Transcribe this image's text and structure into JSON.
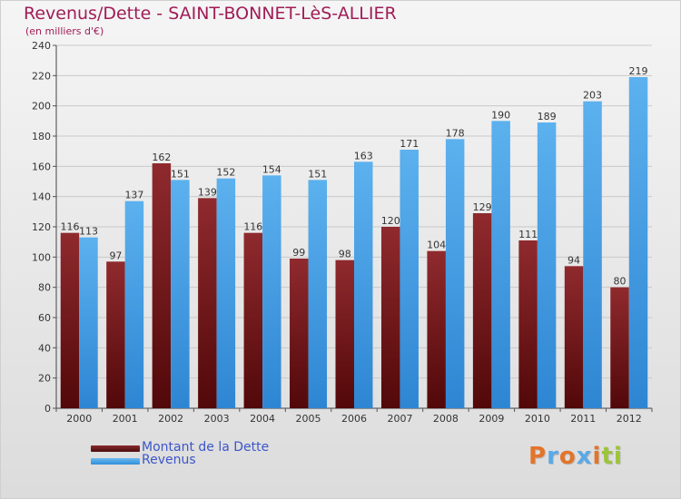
{
  "title": "Revenus/Dette - SAINT-BONNET-LèS-ALLIER",
  "subtitle": "(en milliers d'€)",
  "brand": {
    "text": "Proxiti",
    "letter_colors": [
      "#e3742a",
      "#5aa9e6",
      "#e3742a",
      "#5aa9e6",
      "#e3742a",
      "#9dc43b",
      "#9dc43b"
    ]
  },
  "colors": {
    "dette": "#7a1a1c",
    "revenus": "#45a1e5",
    "title": "#a01c56",
    "legend_text": "#3d56c9"
  },
  "chart_data": {
    "type": "bar",
    "title": "Revenus/Dette - SAINT-BONNET-LèS-ALLIER",
    "subtitle": "(en milliers d'€)",
    "categories": [
      "2000",
      "2001",
      "2002",
      "2003",
      "2004",
      "2005",
      "2006",
      "2007",
      "2008",
      "2009",
      "2010",
      "2011",
      "2012"
    ],
    "series": [
      {
        "name": "Montant de la Dette",
        "values": [
          116,
          97,
          162,
          139,
          116,
          99,
          98,
          120,
          104,
          129,
          111,
          94,
          80
        ]
      },
      {
        "name": "Revenus",
        "values": [
          113,
          137,
          151,
          152,
          154,
          151,
          163,
          171,
          178,
          190,
          189,
          203,
          219
        ]
      }
    ],
    "ylim": [
      0,
      240
    ],
    "yticks": [
      0,
      20,
      40,
      60,
      80,
      100,
      120,
      140,
      160,
      180,
      200,
      220,
      240
    ],
    "grid": true,
    "legend_position": "bottom-left"
  }
}
